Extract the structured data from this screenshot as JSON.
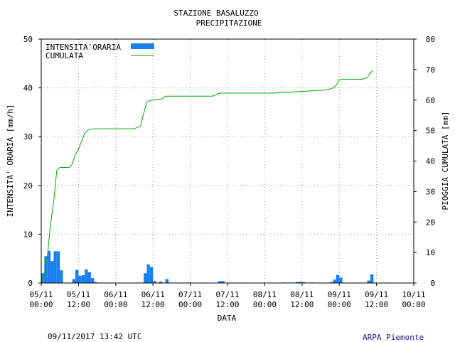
{
  "header": {
    "station": "STAZIONE BASALUZZO",
    "variable": "PRECIPITAZIONE"
  },
  "footer": {
    "timestamp": "09/11/2017 13:42 UTC",
    "source": "ARPA Piemonte",
    "source_color": "#1a1a8c"
  },
  "colors": {
    "bars": "#1a80f0",
    "line": "#00aa00",
    "grid": "#999999"
  },
  "chart_data": {
    "type": "bar",
    "xlabel": "DATA",
    "ylabel_left": "INTENSITA' ORARIA [mm/h]",
    "ylabel_right": "PIOGGIA CUMULATA [mm]",
    "ylim_left": [
      0,
      50
    ],
    "ylim_right": [
      0,
      80
    ],
    "yticks_left": [
      "0",
      "10",
      "20",
      "30",
      "40",
      "50"
    ],
    "yticks_right": [
      "0",
      "10",
      "20",
      "30",
      "40",
      "50",
      "60",
      "70",
      "80"
    ],
    "xlim_hours": [
      0,
      120
    ],
    "xticks": [
      {
        "h": 0,
        "l1": "05/11",
        "l2": "00:00"
      },
      {
        "h": 12,
        "l1": "05/11",
        "l2": "12:00"
      },
      {
        "h": 24,
        "l1": "06/11",
        "l2": "00:00"
      },
      {
        "h": 36,
        "l1": "06/11",
        "l2": "12:00"
      },
      {
        "h": 48,
        "l1": "07/11",
        "l2": "00:00"
      },
      {
        "h": 60,
        "l1": "07/11",
        "l2": "12:00"
      },
      {
        "h": 72,
        "l1": "08/11",
        "l2": "00:00"
      },
      {
        "h": 84,
        "l1": "08/11",
        "l2": "12:00"
      },
      {
        "h": 96,
        "l1": "09/11",
        "l2": "00:00"
      },
      {
        "h": 108,
        "l1": "09/11",
        "l2": "12:00"
      },
      {
        "h": 120,
        "l1": "10/11",
        "l2": "00:00"
      }
    ],
    "legend": [
      {
        "label": "INTENSITA'ORARIA",
        "kind": "bar"
      },
      {
        "label": "CUMULATA",
        "kind": "line"
      }
    ],
    "legend_position": "top-left",
    "grid": true,
    "hourly_intensity": [
      {
        "h": 0,
        "v": 2.0
      },
      {
        "h": 1,
        "v": 5.5
      },
      {
        "h": 2,
        "v": 6.6
      },
      {
        "h": 3,
        "v": 4.5
      },
      {
        "h": 4,
        "v": 6.5
      },
      {
        "h": 5,
        "v": 6.5
      },
      {
        "h": 6,
        "v": 2.6
      },
      {
        "h": 10,
        "v": 0.8
      },
      {
        "h": 11,
        "v": 2.7
      },
      {
        "h": 12,
        "v": 1.5
      },
      {
        "h": 13,
        "v": 1.6
      },
      {
        "h": 14,
        "v": 2.8
      },
      {
        "h": 15,
        "v": 2.2
      },
      {
        "h": 16,
        "v": 1.0
      },
      {
        "h": 17,
        "v": 0.2
      },
      {
        "h": 33,
        "v": 2.0
      },
      {
        "h": 34,
        "v": 3.8
      },
      {
        "h": 35,
        "v": 3.3
      },
      {
        "h": 36,
        "v": 0.4
      },
      {
        "h": 38,
        "v": 0.3
      },
      {
        "h": 40,
        "v": 0.8
      },
      {
        "h": 47,
        "v": 0.1
      },
      {
        "h": 57,
        "v": 0.4
      },
      {
        "h": 58,
        "v": 0.4
      },
      {
        "h": 78,
        "v": 0.1
      },
      {
        "h": 82,
        "v": 0.2
      },
      {
        "h": 83,
        "v": 0.2
      },
      {
        "h": 84,
        "v": 0.2
      },
      {
        "h": 87,
        "v": 0.1
      },
      {
        "h": 93,
        "v": 0.2
      },
      {
        "h": 94,
        "v": 0.7
      },
      {
        "h": 95,
        "v": 1.6
      },
      {
        "h": 96,
        "v": 1.1
      },
      {
        "h": 105,
        "v": 0.5
      },
      {
        "h": 106,
        "v": 1.8
      }
    ],
    "cumulative": {
      "x": [
        0,
        1,
        2,
        3,
        4,
        5,
        6,
        7,
        9,
        10,
        11,
        12,
        13,
        14,
        15,
        16,
        17,
        20,
        30,
        32,
        33,
        34,
        35,
        36,
        39,
        40,
        42,
        48,
        55,
        56,
        57,
        58,
        65,
        70,
        75,
        80,
        90,
        92,
        93,
        94,
        95,
        96,
        97,
        100,
        103,
        105,
        106,
        107
      ],
      "y": [
        0,
        3.2,
        8.8,
        19.4,
        26.6,
        36.9,
        37.9,
        37.9,
        37.9,
        39.0,
        42.2,
        43.8,
        46.5,
        49.1,
        50.1,
        50.5,
        50.6,
        50.6,
        50.6,
        51.5,
        55.6,
        59.3,
        59.9,
        60.0,
        60.4,
        61.3,
        61.3,
        61.3,
        61.3,
        61.6,
        62.1,
        62.3,
        62.3,
        62.3,
        62.3,
        62.6,
        63.2,
        63.4,
        63.6,
        64.0,
        64.8,
        66.6,
        66.8,
        66.8,
        66.8,
        67.3,
        69.0,
        69.6
      ]
    }
  }
}
